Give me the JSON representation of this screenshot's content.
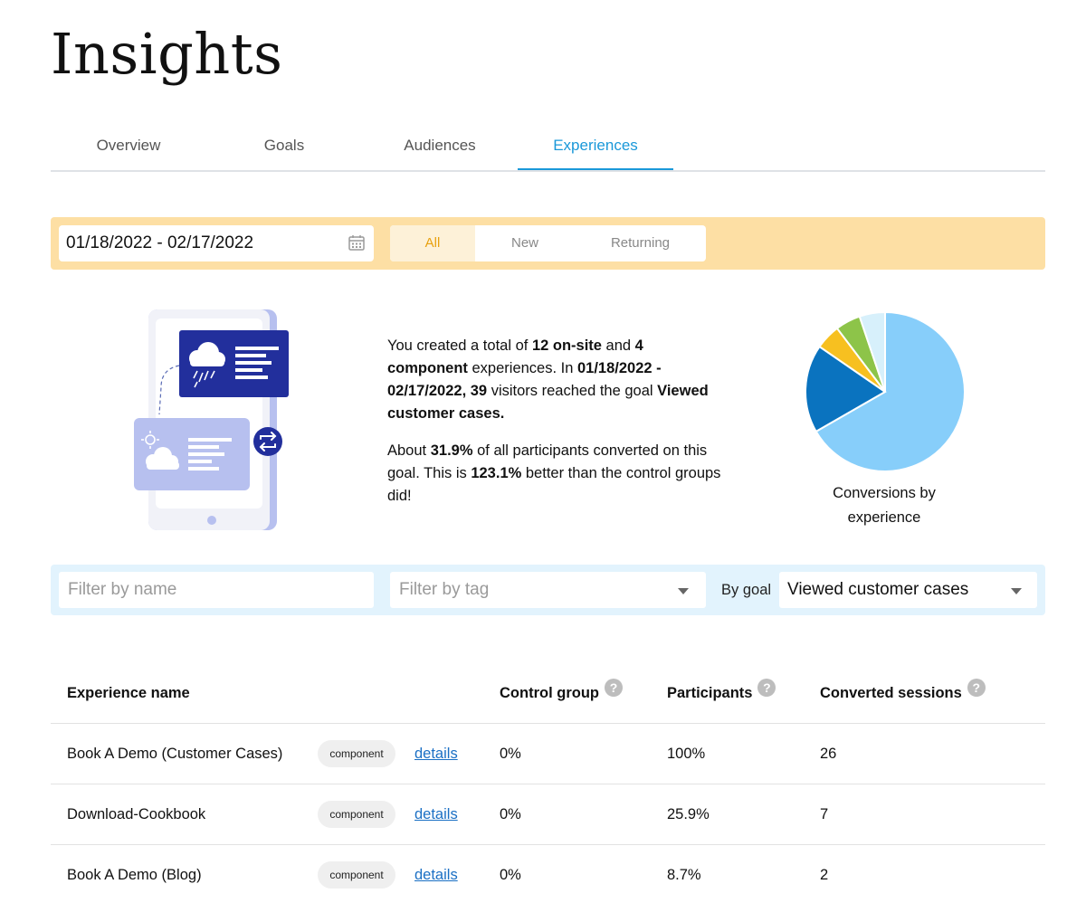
{
  "page": {
    "title": "Insights"
  },
  "tabs": [
    {
      "label": "Overview",
      "active": false
    },
    {
      "label": "Goals",
      "active": false
    },
    {
      "label": "Audiences",
      "active": false
    },
    {
      "label": "Experiences",
      "active": true
    }
  ],
  "date_filter": {
    "value": "01/18/2022 - 02/17/2022",
    "icon": "calendar-icon"
  },
  "visitor_segment": {
    "options": [
      "All",
      "New",
      "Returning"
    ],
    "selected": "All"
  },
  "summary": {
    "p1": {
      "a": "You created a total of ",
      "b": "12 on-site",
      "c": " and ",
      "d": "4 component",
      "e": " experiences. In ",
      "f": "01/18/2022 - 02/17/2022, 39",
      "g": " visitors reached the goal ",
      "h": "Viewed customer cases."
    },
    "p2": {
      "a": "About ",
      "b": "31.9%",
      "c": " of all participants converted on this goal. This is ",
      "d": "123.1%",
      "e": " better than the control groups did!"
    }
  },
  "chart_data": {
    "type": "pie",
    "title": "Conversions by experience",
    "slices": [
      {
        "value": 66.7,
        "color": "#87cefa"
      },
      {
        "value": 17.9,
        "color": "#0a73bf"
      },
      {
        "value": 5.1,
        "color": "#f7c020"
      },
      {
        "value": 5.1,
        "color": "#8dc449"
      },
      {
        "value": 5.2,
        "color": "#d7f0fb"
      }
    ]
  },
  "filters": {
    "name_placeholder": "Filter by name",
    "tag_placeholder": "Filter by tag",
    "goal_label": "By goal",
    "goal_value": "Viewed customer cases"
  },
  "table": {
    "columns": [
      "Experience name",
      "Control group",
      "Participants",
      "Converted sessions"
    ],
    "help_glyph": "?",
    "rows": [
      {
        "name": "Book A Demo (Customer Cases)",
        "tag": "component",
        "link": "details",
        "control": "0%",
        "participants": "100%",
        "converted": "26"
      },
      {
        "name": "Download-Cookbook",
        "tag": "component",
        "link": "details",
        "control": "0%",
        "participants": "25.9%",
        "converted": "7"
      },
      {
        "name": "Book A Demo (Blog)",
        "tag": "component",
        "link": "details",
        "control": "0%",
        "participants": "8.7%",
        "converted": "2"
      }
    ]
  }
}
